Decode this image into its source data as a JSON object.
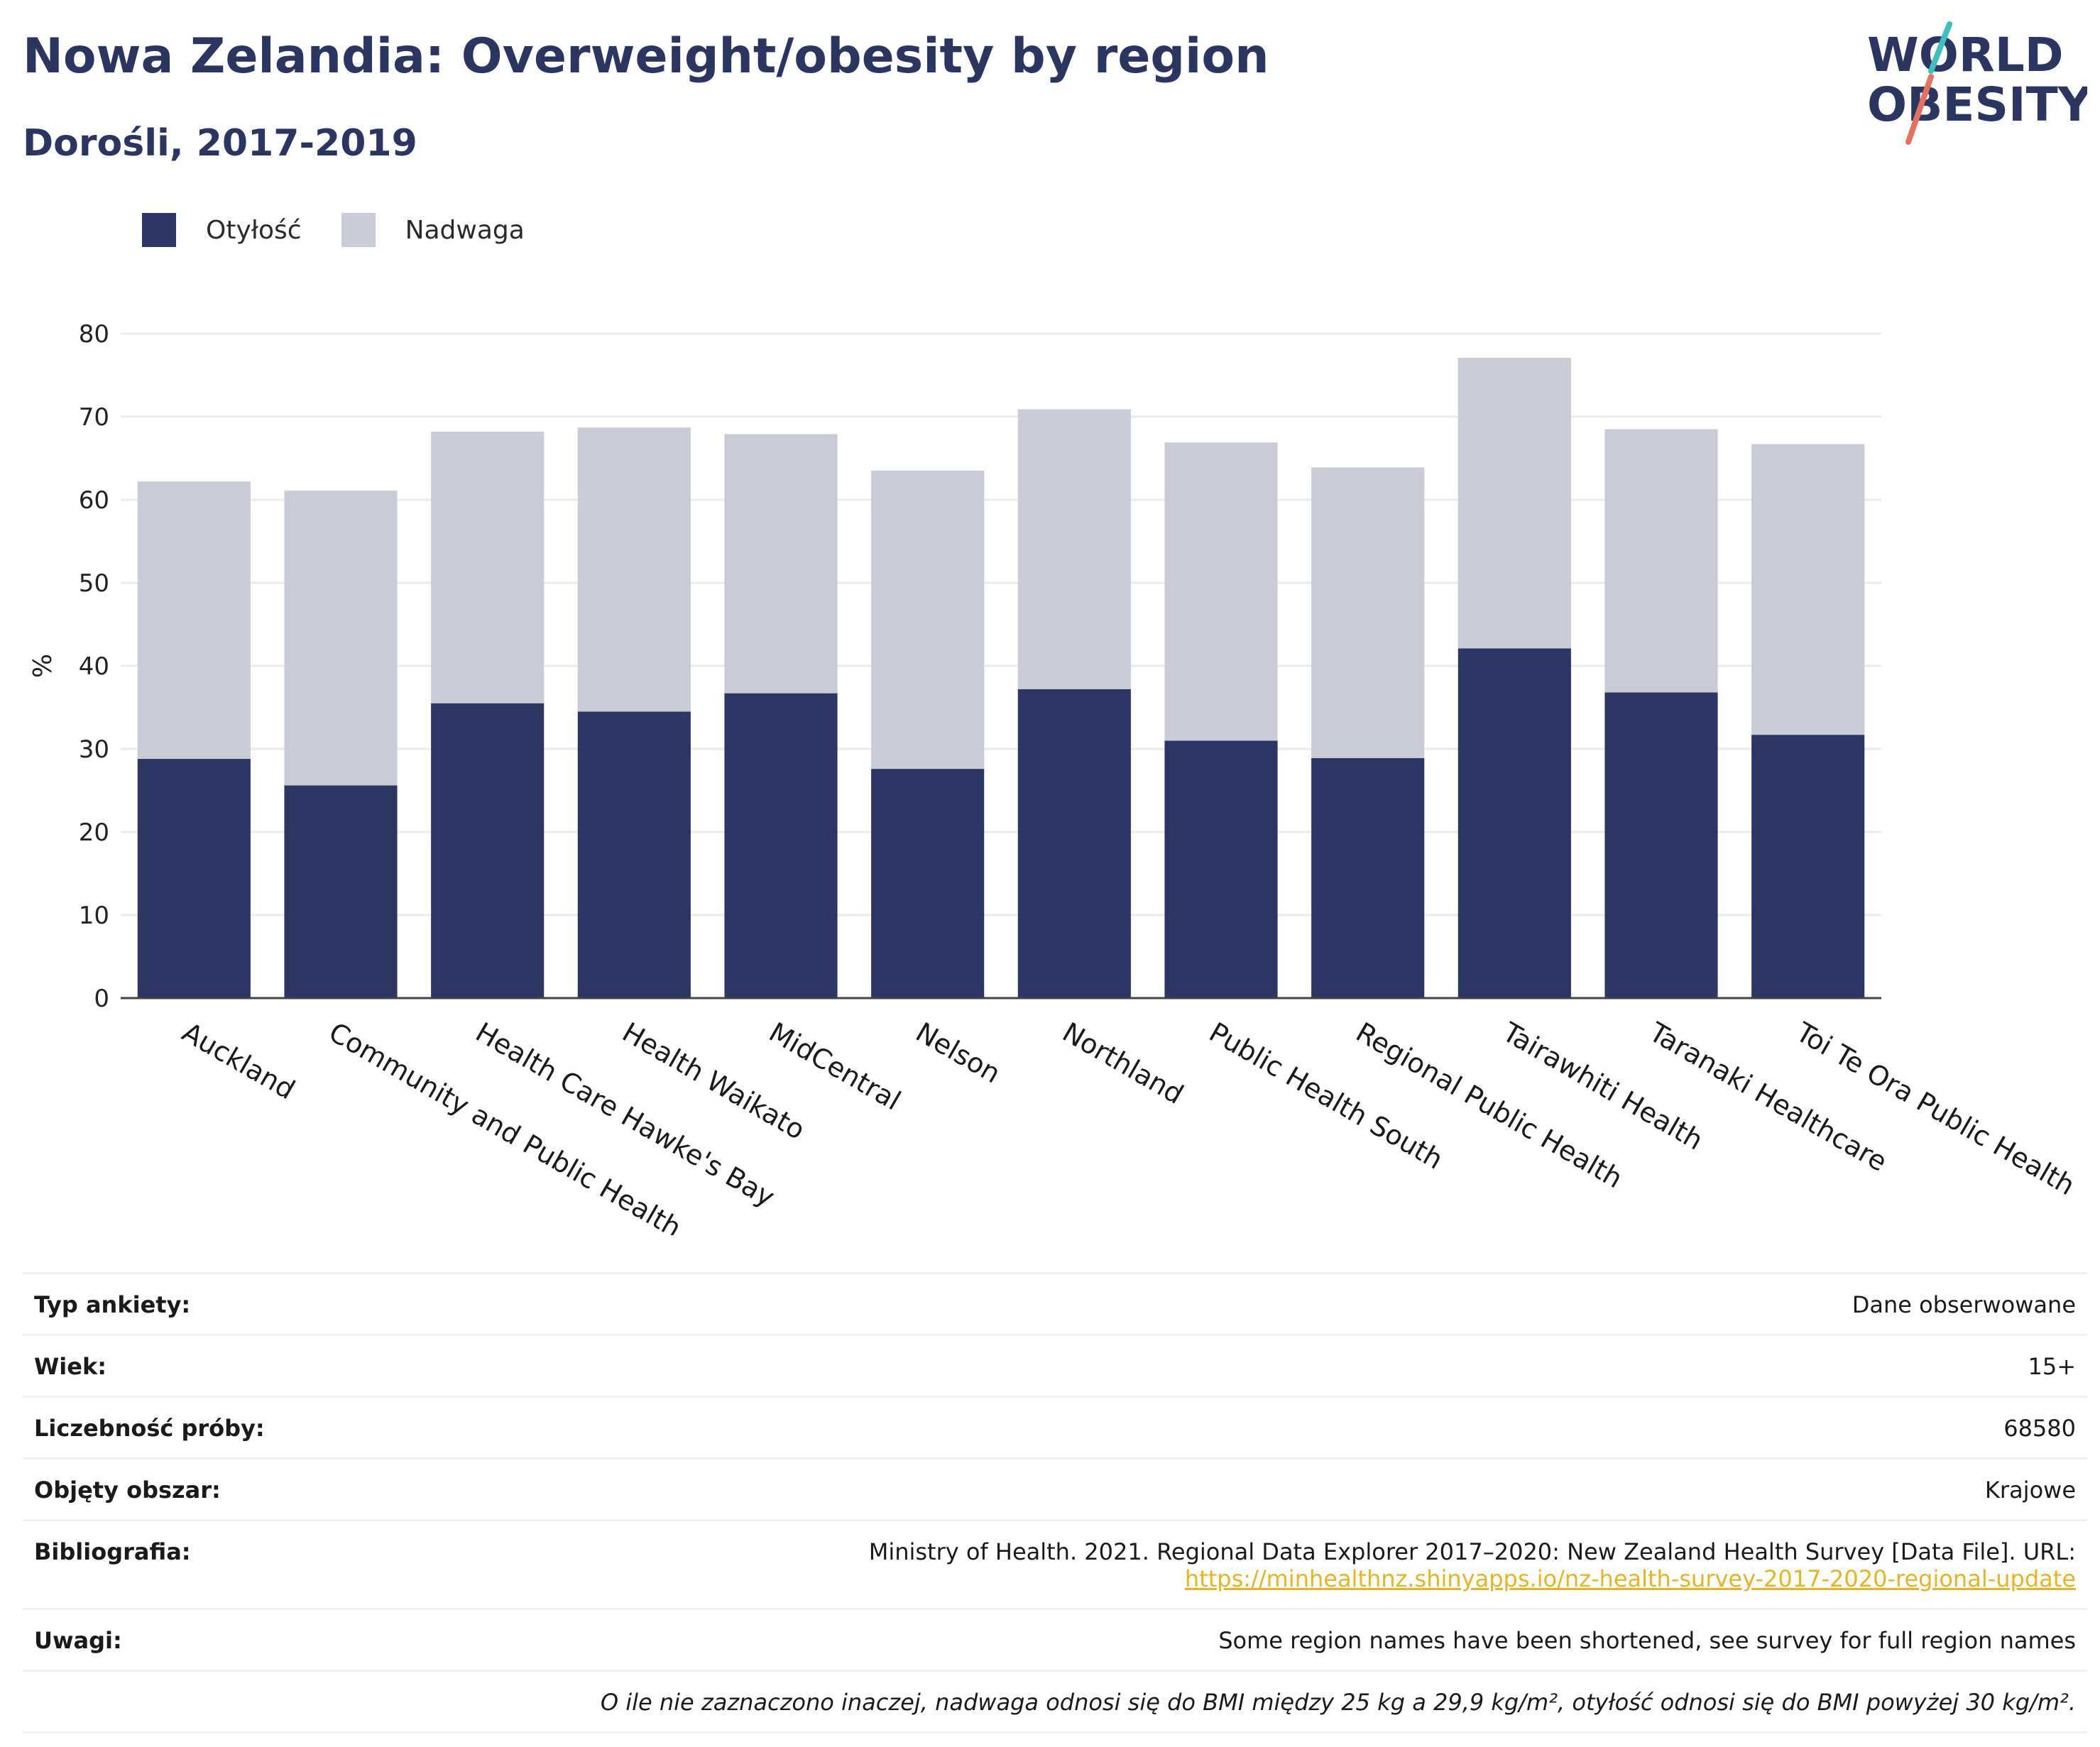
{
  "header": {
    "title": "Nowa Zelandia: Overweight/obesity by region",
    "subtitle": "Dorośli, 2017-2019"
  },
  "logo": {
    "line1": "WORLD",
    "line2": "OBESITY"
  },
  "colors": {
    "obesity": "#2b3664",
    "overweight": "#c9cbd7",
    "accent_teal": "#3bbfbf",
    "accent_coral": "#e8705f",
    "link": "#e8b422"
  },
  "chart_data": {
    "type": "bar",
    "stacked": true,
    "categories": [
      "Auckland",
      "Community and Public Health",
      "Health Care Hawke's Bay",
      "Health Waikato",
      "MidCentral",
      "Nelson",
      "Northland",
      "Public Health South",
      "Regional Public Health",
      "Tairawhiti Health",
      "Taranaki Healthcare",
      "Toi Te Ora Public Health"
    ],
    "series": [
      {
        "name": "Otyłość",
        "values": [
          28.8,
          25.6,
          35.5,
          34.5,
          36.7,
          27.6,
          37.2,
          31.0,
          28.9,
          42.1,
          36.8,
          31.7
        ]
      },
      {
        "name": "Nadwaga",
        "values": [
          33.4,
          35.5,
          32.7,
          34.2,
          31.2,
          35.9,
          33.7,
          35.9,
          35.0,
          35.0,
          31.7,
          35.0
        ]
      }
    ],
    "ylabel": "%",
    "ylim": [
      0,
      80
    ],
    "yticks": [
      0,
      10,
      20,
      30,
      40,
      50,
      60,
      70,
      80
    ],
    "grid": true,
    "legend_position": "top-left"
  },
  "info": {
    "survey_type": {
      "label": "Typ ankiety:",
      "value": "Dane obserwowane"
    },
    "age": {
      "label": "Wiek:",
      "value": "15+"
    },
    "sample": {
      "label": "Liczebność próby:",
      "value": "68580"
    },
    "area": {
      "label": "Objęty obszar:",
      "value": "Krajowe"
    },
    "bibliography": {
      "label": "Bibliografia:",
      "value": "Ministry of Health. 2021. Regional Data Explorer 2017–2020: New Zealand Health Survey [Data File]. URL:",
      "link": "https://minhealthnz.shinyapps.io/nz-health-survey-2017-2020-regional-update"
    },
    "notes": {
      "label": "Uwagi:",
      "value": "Some region names have been shortened, see survey for full region names"
    },
    "footnote": "O ile nie zaznaczono inaczej, nadwaga odnosi się do BMI między 25 kg a 29,9 kg/m², otyłość odnosi się do BMI powyżej 30 kg/m²."
  }
}
